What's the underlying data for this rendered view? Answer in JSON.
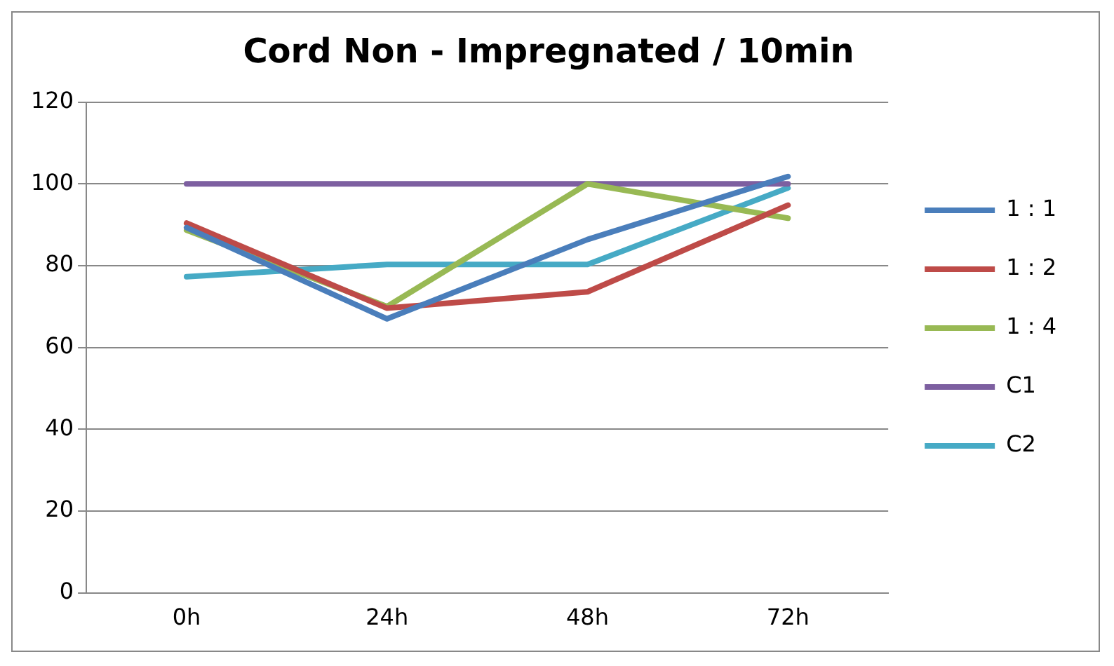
{
  "chart_data": {
    "type": "line",
    "title": "Cord Non - Impregnated / 10min",
    "categories": [
      "0h",
      "24h",
      "48h",
      "72h"
    ],
    "series": [
      {
        "name": "1 : 1",
        "color": "#4a7ebb",
        "values": [
          89.3,
          67,
          86.4,
          101.8
        ]
      },
      {
        "name": "1 : 2",
        "color": "#be4b48",
        "values": [
          90.4,
          69.6,
          73.6,
          94.8
        ]
      },
      {
        "name": "1 : 4",
        "color": "#98b954",
        "values": [
          88.7,
          70,
          100,
          91.6
        ]
      },
      {
        "name": "C1",
        "color": "#7d5fa0",
        "values": [
          100,
          100,
          100,
          100
        ]
      },
      {
        "name": "C2",
        "color": "#46aac5",
        "values": [
          77.3,
          80.3,
          80.3,
          99
        ]
      }
    ],
    "ylim": [
      0,
      120
    ],
    "yticks": [
      0,
      20,
      40,
      60,
      80,
      100,
      120
    ],
    "grid": "y",
    "legend": "right",
    "marker": "none",
    "line_style": "solid"
  }
}
